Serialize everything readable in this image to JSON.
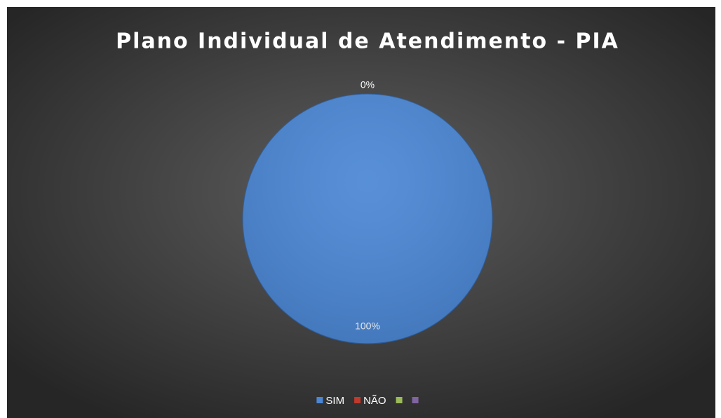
{
  "chart_data": {
    "type": "pie",
    "title": "Plano Individual de Atendimento - PIA",
    "categories": [
      "SIM",
      "NÃO",
      null,
      null
    ],
    "values": [
      100,
      0,
      0,
      0
    ],
    "value_labels": [
      "100%",
      "0%",
      null,
      null
    ],
    "colors": [
      "#4a86d4",
      "#c0392b",
      "#9bbb59",
      "#8064a2"
    ],
    "legend": "bottom"
  }
}
